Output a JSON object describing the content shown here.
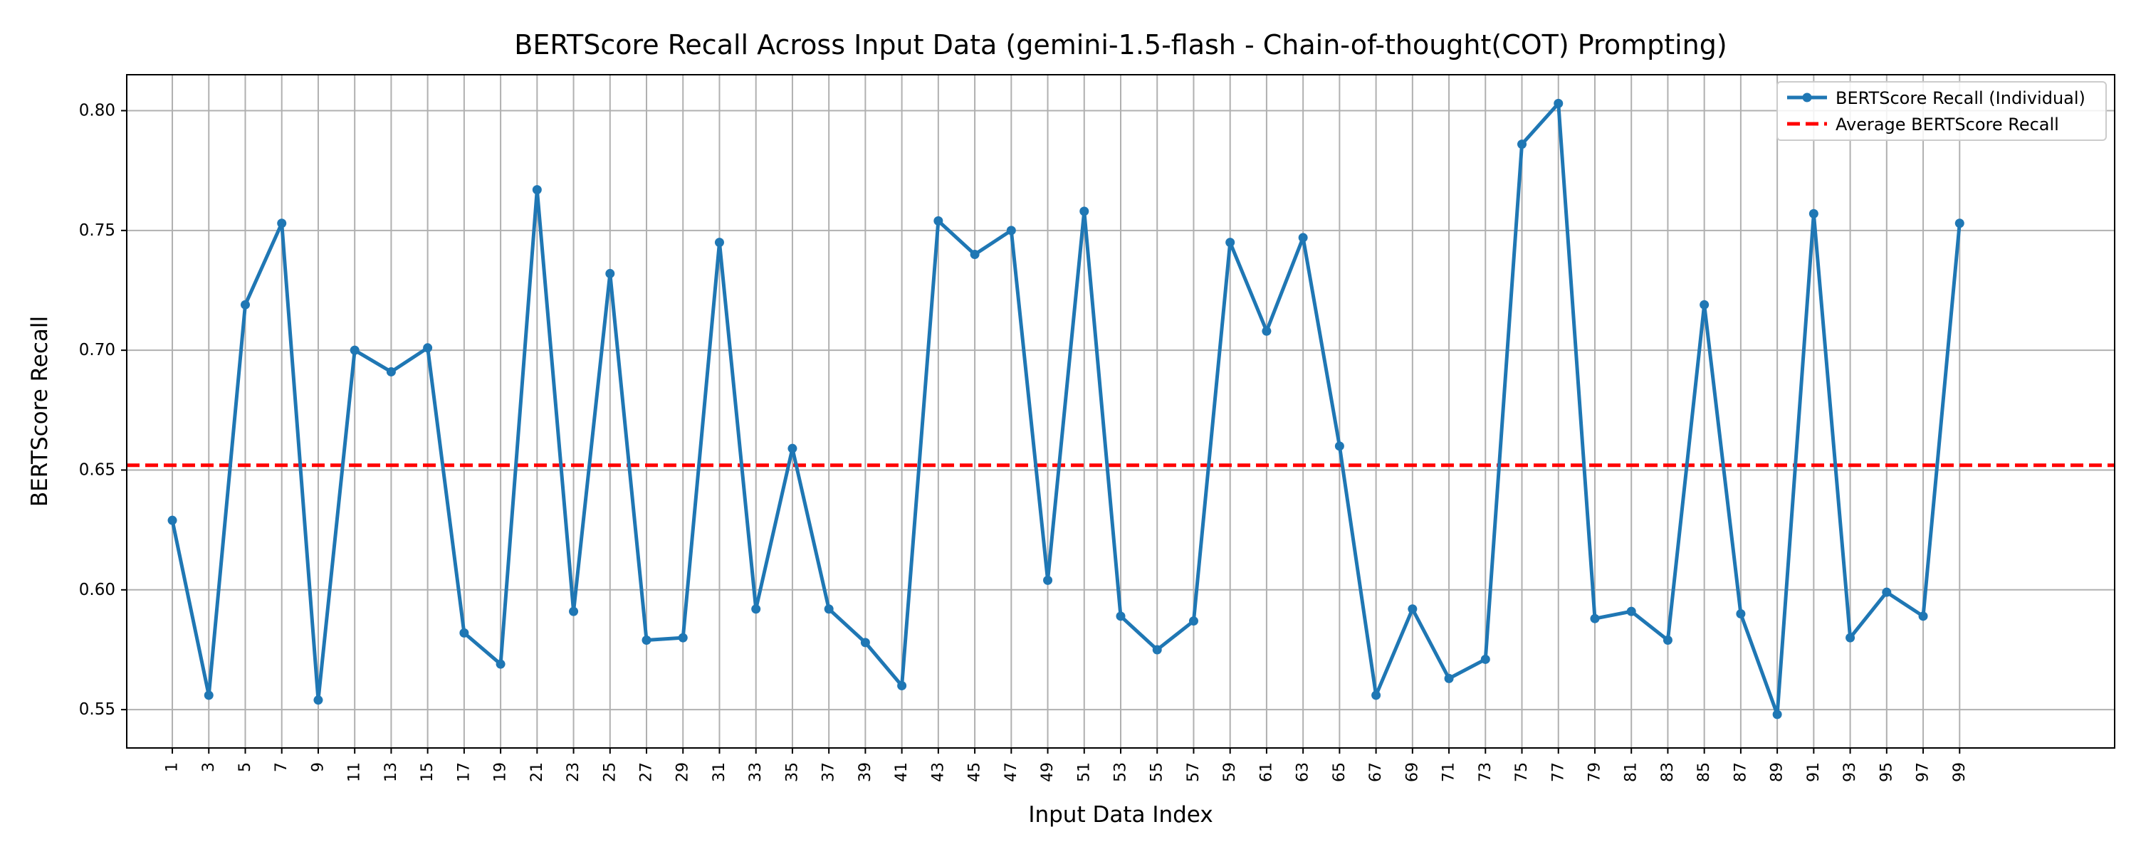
{
  "chart_data": {
    "type": "line",
    "title": "BERTScore Recall Across Input Data (gemini-1.5-flash - Chain-of-thought(COT) Prompting)",
    "xlabel": "Input Data Index",
    "ylabel": "BERTScore Recall",
    "grid": true,
    "legend_position": "top-right",
    "xlim": [
      -1.5,
      107.5
    ],
    "ylim": [
      0.534,
      0.815
    ],
    "x_ticks": [
      1,
      3,
      5,
      7,
      9,
      11,
      13,
      15,
      17,
      19,
      21,
      23,
      25,
      27,
      29,
      31,
      33,
      35,
      37,
      39,
      41,
      43,
      45,
      47,
      49,
      51,
      53,
      55,
      57,
      59,
      61,
      63,
      65,
      67,
      69,
      71,
      73,
      75,
      77,
      79,
      81,
      83,
      85,
      87,
      89,
      91,
      93,
      95,
      97,
      99
    ],
    "x_tick_labels": [
      "1",
      "3",
      "5",
      "7",
      "9",
      "11",
      "13",
      "15",
      "17",
      "19",
      "21",
      "23",
      "25",
      "27",
      "29",
      "31",
      "33",
      "35",
      "37",
      "39",
      "41",
      "43",
      "45",
      "47",
      "49",
      "51",
      "53",
      "55",
      "57",
      "59",
      "61",
      "63",
      "65",
      "67",
      "69",
      "71",
      "73",
      "75",
      "77",
      "79",
      "81",
      "83",
      "85",
      "87",
      "89",
      "91",
      "93",
      "95",
      "97",
      "99"
    ],
    "y_ticks": [
      0.55,
      0.6,
      0.65,
      0.7,
      0.75,
      0.8
    ],
    "y_tick_labels": [
      "0.55",
      "0.60",
      "0.65",
      "0.70",
      "0.75",
      "0.80"
    ],
    "series": [
      {
        "name": "BERTScore Recall (Individual)",
        "color": "#1f77b4",
        "style": "solid-with-markers",
        "x": [
          1,
          3,
          5,
          7,
          9,
          11,
          13,
          15,
          17,
          19,
          21,
          23,
          25,
          27,
          29,
          31,
          33,
          35,
          37,
          39,
          41,
          43,
          45,
          47,
          49,
          51,
          53,
          55,
          57,
          59,
          61,
          63,
          65,
          67,
          69,
          71,
          73,
          75,
          77,
          79,
          81,
          83,
          85,
          87,
          89,
          91,
          93,
          95,
          97,
          99
        ],
        "y": [
          0.629,
          0.556,
          0.719,
          0.753,
          0.554,
          0.7,
          0.691,
          0.701,
          0.582,
          0.569,
          0.767,
          0.591,
          0.732,
          0.579,
          0.58,
          0.745,
          0.592,
          0.659,
          0.592,
          0.578,
          0.56,
          0.754,
          0.74,
          0.75,
          0.604,
          0.758,
          0.589,
          0.575,
          0.587,
          0.745,
          0.708,
          0.747,
          0.66,
          0.556,
          0.592,
          0.563,
          0.571,
          0.786,
          0.803,
          0.588,
          0.591,
          0.579,
          0.719,
          0.59,
          0.548,
          0.757,
          0.58,
          0.599,
          0.589,
          0.753
        ]
      },
      {
        "name": "Average BERTScore Recall",
        "color": "#ff0000",
        "style": "dashed",
        "value": 0.652
      }
    ]
  }
}
